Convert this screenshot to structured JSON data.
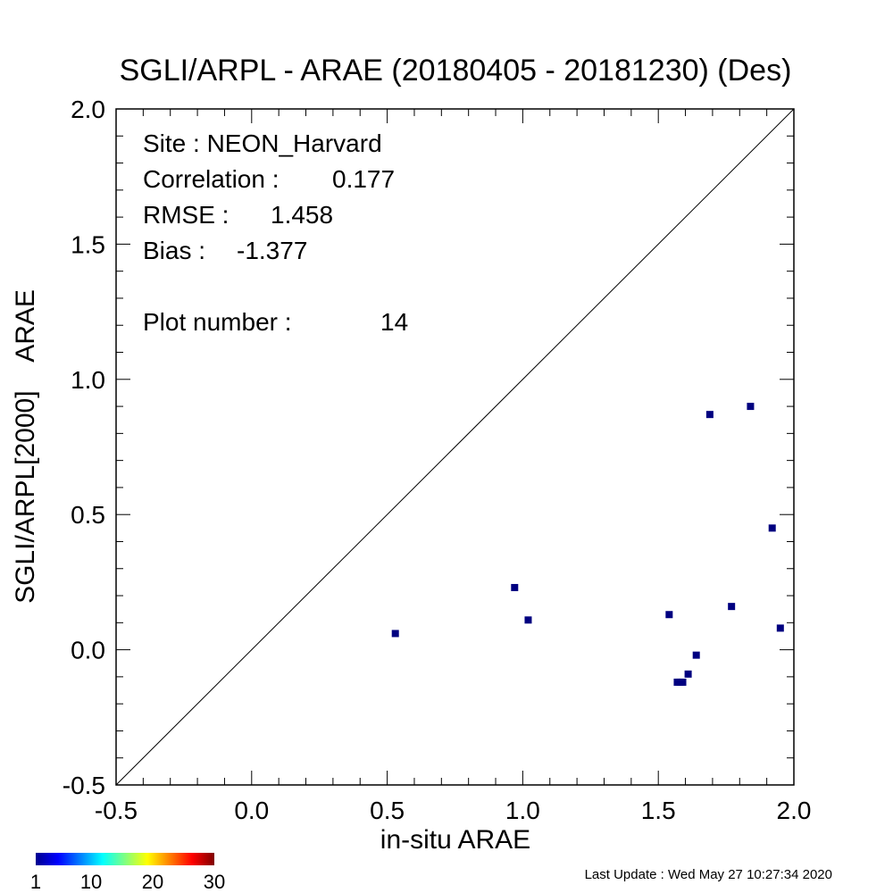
{
  "chart_data": {
    "type": "scatter",
    "title": "SGLI/ARPL - ARAE (20180405 - 20181230) (Des)",
    "xlabel": "in-situ ARAE",
    "ylabel": "SGLI/ARPL[2000]    ARAE",
    "xlim": [
      -0.5,
      2.0
    ],
    "ylim": [
      -0.5,
      2.0
    ],
    "x_ticks": [
      -0.5,
      0.0,
      0.5,
      1.0,
      1.5,
      2.0
    ],
    "y_ticks": [
      -0.5,
      0.0,
      0.5,
      1.0,
      1.5,
      2.0
    ],
    "x_tick_labels": [
      "-0.5",
      "0.0",
      "0.5",
      "1.0",
      "1.5",
      "2.0"
    ],
    "y_tick_labels": [
      "-0.5",
      "0.0",
      "0.5",
      "1.0",
      "1.5",
      "2.0"
    ],
    "minor_tick_step": 0.1,
    "reference_line": "1:1",
    "grid": false,
    "marker_color": "#000080",
    "points": [
      {
        "x": 0.53,
        "y": 0.06
      },
      {
        "x": 0.97,
        "y": 0.23
      },
      {
        "x": 1.02,
        "y": 0.11
      },
      {
        "x": 1.54,
        "y": 0.13
      },
      {
        "x": 1.57,
        "y": -0.12
      },
      {
        "x": 1.59,
        "y": -0.12
      },
      {
        "x": 1.61,
        "y": -0.09
      },
      {
        "x": 1.64,
        "y": -0.02
      },
      {
        "x": 1.69,
        "y": 0.87
      },
      {
        "x": 1.77,
        "y": 0.16
      },
      {
        "x": 1.84,
        "y": 0.9
      },
      {
        "x": 1.92,
        "y": 0.45
      },
      {
        "x": 1.95,
        "y": 0.08
      },
      {
        "x": 1.58,
        "y": -0.12
      }
    ],
    "stats": {
      "site": "Site : NEON_Harvard",
      "correlation_label": "Correlation :",
      "correlation_value": "0.177",
      "rmse_label": "RMSE :",
      "rmse_value": "1.458",
      "bias_label": "Bias :",
      "bias_value": "-1.377",
      "plot_number_label": "Plot number :",
      "plot_number_value": "14"
    },
    "colorbar": {
      "labels": [
        "1",
        "10",
        "20",
        "30"
      ],
      "values": [
        1,
        10,
        20,
        30
      ],
      "range": [
        1,
        30
      ],
      "colormap": "jet"
    }
  },
  "footer": {
    "last_update": "Last Update : Wed May 27 10:27:34 2020"
  }
}
